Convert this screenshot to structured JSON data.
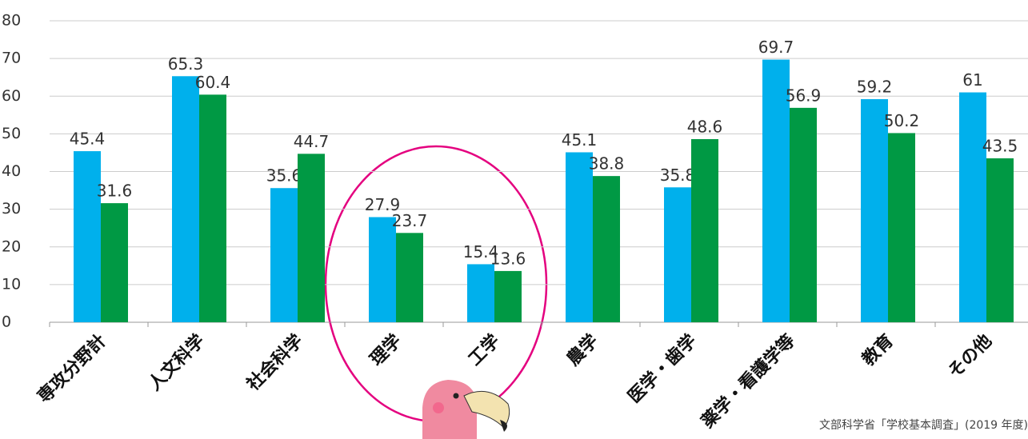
{
  "chart_data": {
    "type": "bar",
    "categories": [
      "専攻分野計",
      "人文科学",
      "社会科学",
      "理学",
      "工学",
      "農学",
      "医学・歯学",
      "薬学・看護学等",
      "教育",
      "その他"
    ],
    "series": [
      {
        "color": "#00b0ec",
        "values": [
          45.4,
          65.3,
          35.6,
          27.9,
          15.4,
          45.1,
          35.8,
          69.7,
          59.2,
          61
        ]
      },
      {
        "color": "#009944",
        "values": [
          31.6,
          60.4,
          44.7,
          23.7,
          13.6,
          38.8,
          48.6,
          56.9,
          50.2,
          43.5
        ]
      }
    ],
    "ylim": [
      0,
      80
    ],
    "yticks": [
      0,
      10,
      20,
      30,
      40,
      50,
      60,
      70,
      80
    ],
    "grid": true,
    "source": "文部科学省「学校基本調査」(2019 年度)"
  }
}
